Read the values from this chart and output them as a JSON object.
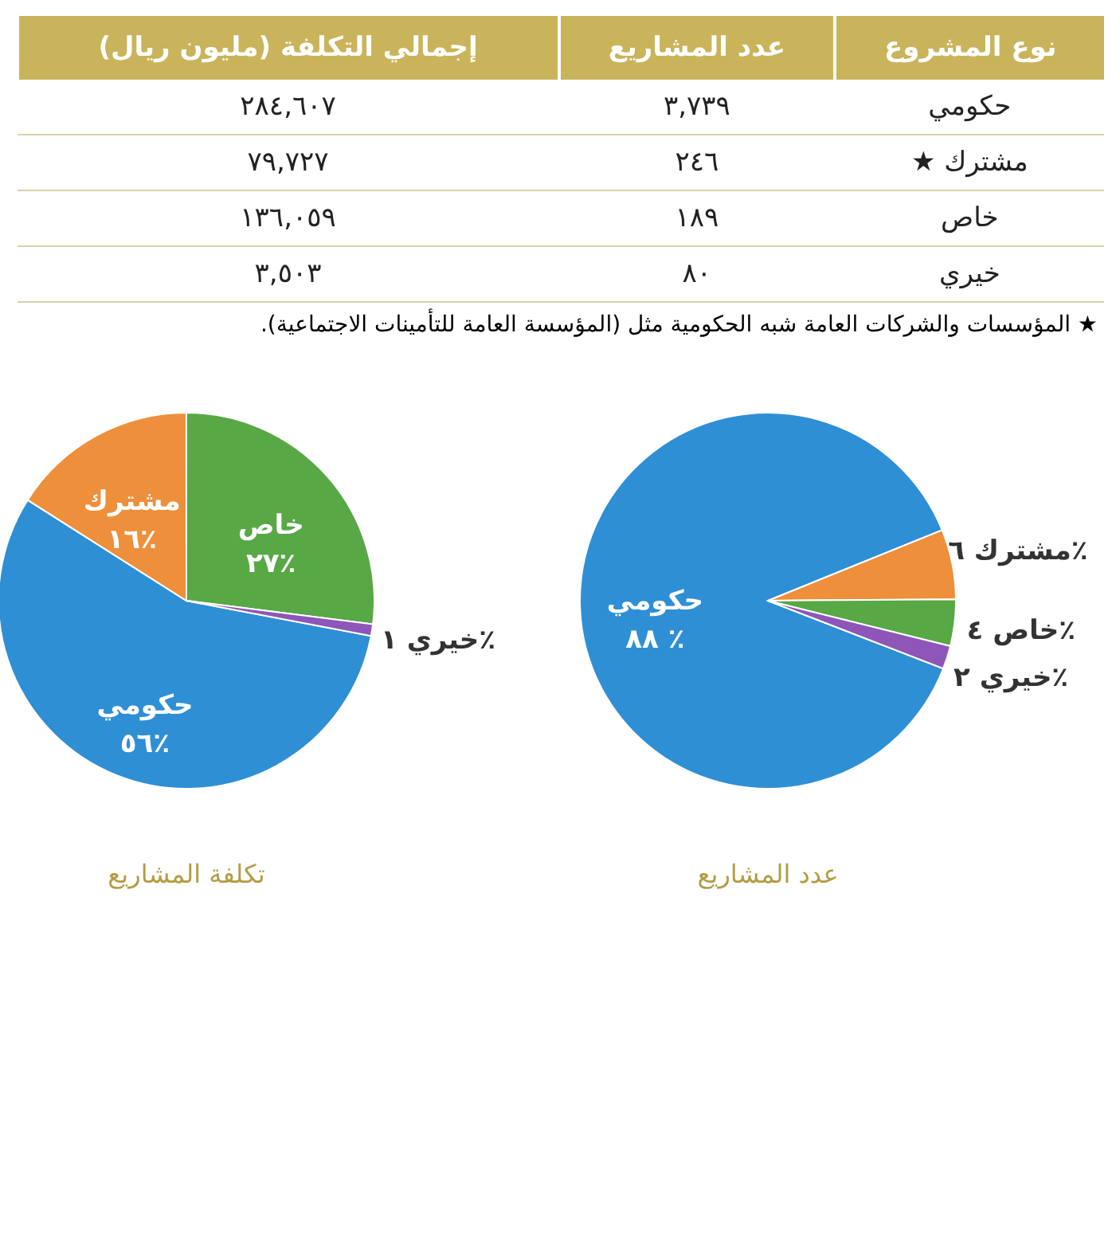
{
  "chart_data": [
    {
      "type": "other",
      "categories": [
        "نوع المشروع",
        "عدد المشاريع",
        "إجمالي التكلفة (مليون ريال)"
      ],
      "cell_labels": [
        [
          "حكومي",
          "٣,٧٣٩",
          "٢٨٤,٦٠٧"
        ],
        [
          "مشترك ★",
          "٢٤٦",
          "٧٩,٧٢٧"
        ],
        [
          "خاص",
          "١٨٩",
          "١٣٦,٠٥٩"
        ],
        [
          "خيري",
          "٨٠",
          "٣,٥٠٣"
        ]
      ],
      "annotations": [
        "★ المؤسسات والشركات العامة شبه الحكومية مثل (المؤسسة العامة للتأمينات الاجتماعية)."
      ]
    },
    {
      "type": "pie",
      "title": "عدد المشاريع",
      "categories": [
        "حكومي",
        "مشترك",
        "خاص",
        "خيري"
      ],
      "values": [
        88,
        6,
        4,
        2
      ],
      "colors": [
        "#2f8fd5",
        "#ee8f3b",
        "#58a845",
        "#8d56b8"
      ],
      "value_labels": [
        "٨٨ ٪",
        "٦٪",
        "٤٪",
        "٢٪"
      ]
    },
    {
      "type": "pie",
      "title": "تكلفة المشاريع",
      "categories": [
        "حكومي",
        "مشترك",
        "خاص",
        "خيري"
      ],
      "values": [
        56,
        16,
        27,
        1
      ],
      "colors": [
        "#2f8fd5",
        "#ee8f3b",
        "#58a845",
        "#8d56b8"
      ],
      "value_labels": [
        "٥٦٪",
        "١٦٪",
        "٢٧٪",
        "١٪"
      ]
    }
  ]
}
